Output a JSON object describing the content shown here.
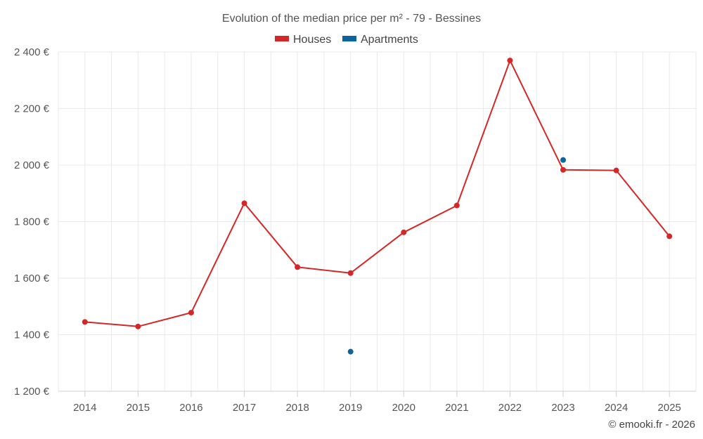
{
  "chart_data": {
    "type": "line",
    "title": "Evolution of the median price per m² - 79 - Bessines",
    "categories": [
      "2014",
      "2015",
      "2016",
      "2017",
      "2018",
      "2019",
      "2020",
      "2021",
      "2022",
      "2023",
      "2024",
      "2025"
    ],
    "series": [
      {
        "name": "Houses",
        "color": "#d62728",
        "values": [
          1445,
          1429,
          1478,
          1865,
          1639,
          1618,
          1762,
          1857,
          2370,
          1983,
          1981,
          1748
        ]
      },
      {
        "name": "Apartments",
        "color": "#0b64a0",
        "values": [
          null,
          null,
          null,
          null,
          null,
          1340,
          null,
          null,
          null,
          2018,
          null,
          null
        ]
      }
    ],
    "ylim": [
      1200,
      2400
    ],
    "yticks": [
      1200,
      1400,
      1600,
      1800,
      2000,
      2200,
      2400
    ],
    "ytick_labels": [
      "1 200 €",
      "1 400 €",
      "1 600 €",
      "1 800 €",
      "2 000 €",
      "2 200 €",
      "2 400 €"
    ],
    "xlabel": "",
    "ylabel": "",
    "grid": true,
    "legend_position": "top-center"
  },
  "credit": "© emooki.fr - 2026"
}
